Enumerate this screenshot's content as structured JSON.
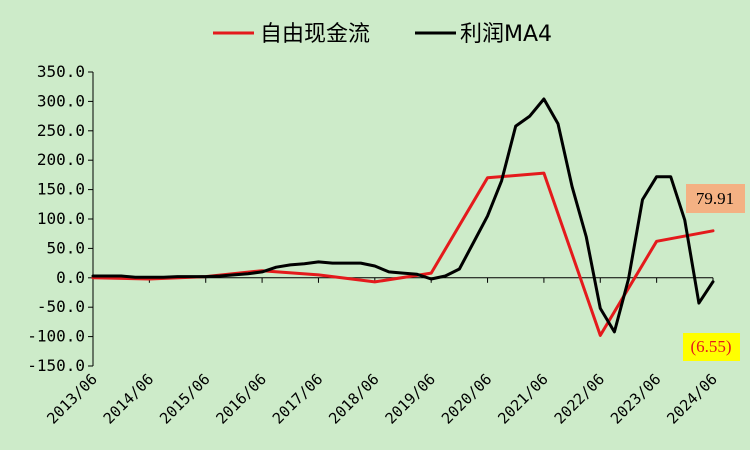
{
  "chart_data": {
    "type": "line",
    "title": "",
    "xlabel": "",
    "ylabel": "",
    "ylim": [
      -150,
      350
    ],
    "yticks": [
      "350.0",
      "300.0",
      "250.0",
      "200.0",
      "150.0",
      "100.0",
      "50.0",
      "0.0",
      "-50.0",
      "-100.0",
      "-150.0"
    ],
    "ytick_values": [
      350,
      300,
      250,
      200,
      150,
      100,
      50,
      0,
      -50,
      -100,
      -150
    ],
    "xticks": [
      "2013/06",
      "2014/06",
      "2015/06",
      "2016/06",
      "2017/06",
      "2018/06",
      "2019/06",
      "2020/06",
      "2021/06",
      "2022/06",
      "2023/06",
      "2024/06"
    ],
    "legend_position": "top",
    "grid": false,
    "series": [
      {
        "name": "自由现金流",
        "color": "#e41a1c",
        "x": [
          "2013/06",
          "2014/06",
          "2015/06",
          "2016/06",
          "2017/06",
          "2018/06",
          "2019/06",
          "2020/06",
          "2021/06",
          "2022/06",
          "2023/06",
          "2024/06"
        ],
        "y": [
          0,
          -2,
          2,
          12,
          5,
          -7,
          8,
          170,
          178,
          -98,
          62,
          79.91
        ]
      },
      {
        "name": "利润MA4",
        "color": "#000000",
        "x": [
          "2013/06",
          "2013/09",
          "2013/12",
          "2014/03",
          "2014/06",
          "2014/09",
          "2014/12",
          "2015/03",
          "2015/06",
          "2015/09",
          "2015/12",
          "2016/03",
          "2016/06",
          "2016/09",
          "2016/12",
          "2017/03",
          "2017/06",
          "2017/09",
          "2017/12",
          "2018/03",
          "2018/06",
          "2018/09",
          "2018/12",
          "2019/03",
          "2019/06",
          "2019/09",
          "2019/12",
          "2020/03",
          "2020/06",
          "2020/09",
          "2020/12",
          "2021/03",
          "2021/06",
          "2021/09",
          "2021/12",
          "2022/03",
          "2022/06",
          "2022/09",
          "2022/12",
          "2023/03",
          "2023/06",
          "2023/09",
          "2023/12",
          "2024/03",
          "2024/06"
        ],
        "y": [
          3,
          3,
          3,
          1,
          1,
          1,
          2,
          2,
          2,
          3,
          5,
          7,
          10,
          18,
          22,
          24,
          27,
          25,
          25,
          25,
          20,
          10,
          8,
          6,
          -2,
          3,
          15,
          60,
          105,
          165,
          258,
          275,
          304,
          262,
          155,
          70,
          -52,
          -92,
          -2,
          133,
          172,
          172,
          98,
          -43,
          -6.55
        ]
      }
    ],
    "callouts": [
      {
        "label": "79.91",
        "series": "自由现金流",
        "background": "#f4b183",
        "text_color": "#000000"
      },
      {
        "label": "(6.55)",
        "series": "利润MA4",
        "background": "#ffff00",
        "text_color": "#e41a1c"
      }
    ]
  }
}
